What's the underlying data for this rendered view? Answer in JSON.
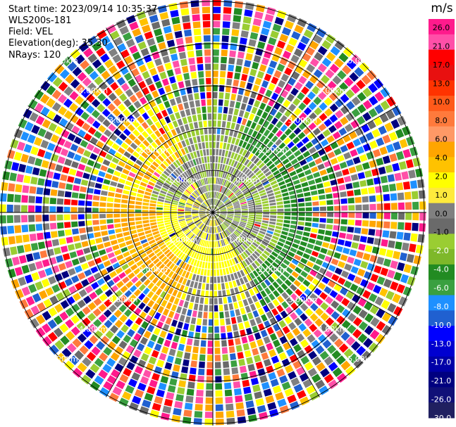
{
  "chart_data": {
    "type": "ppi",
    "info": {
      "start_time": "Start time: 2023/09/14 10:35:37",
      "instrument": "WLS200s-181",
      "field": "Field: VEL",
      "elevation": "Elevation(deg): 35.30",
      "nrays": "NRays: 120"
    },
    "colorbar": {
      "unit": "m/s",
      "ticks": [
        "26.0",
        "21.0",
        "17.0",
        "13.0",
        "10.0",
        "8.0",
        "6.0",
        "4.0",
        "2.0",
        "1.0",
        "0.0",
        "-1.0",
        "-2.0",
        "-4.0",
        "-6.0",
        "-8.0",
        "-10.0",
        "-13.0",
        "-17.0",
        "-21.0",
        "-26.0",
        "-30.0"
      ],
      "colors": [
        "#ff1a8c",
        "#ff4fa8",
        "#ff0000",
        "#e81010",
        "#ff3300",
        "#ff5a1a",
        "#ff7a3c",
        "#ff9966",
        "#ffa500",
        "#ffc200",
        "#ffff00",
        "#ffea3c",
        "#808080",
        "#6a6a6a",
        "#9acd32",
        "#7eb82a",
        "#228b22",
        "#3aa040",
        "#1e90ff",
        "#2060d0",
        "#0000ff",
        "#0000d0",
        "#0000a8",
        "#000080",
        "#101078",
        "#202060"
      ]
    },
    "rings": {
      "labels": [
        "1.00km",
        "2.00km",
        "3.00km",
        "4.00km",
        "5.00km"
      ]
    },
    "rays": 120,
    "gates": 30
  }
}
